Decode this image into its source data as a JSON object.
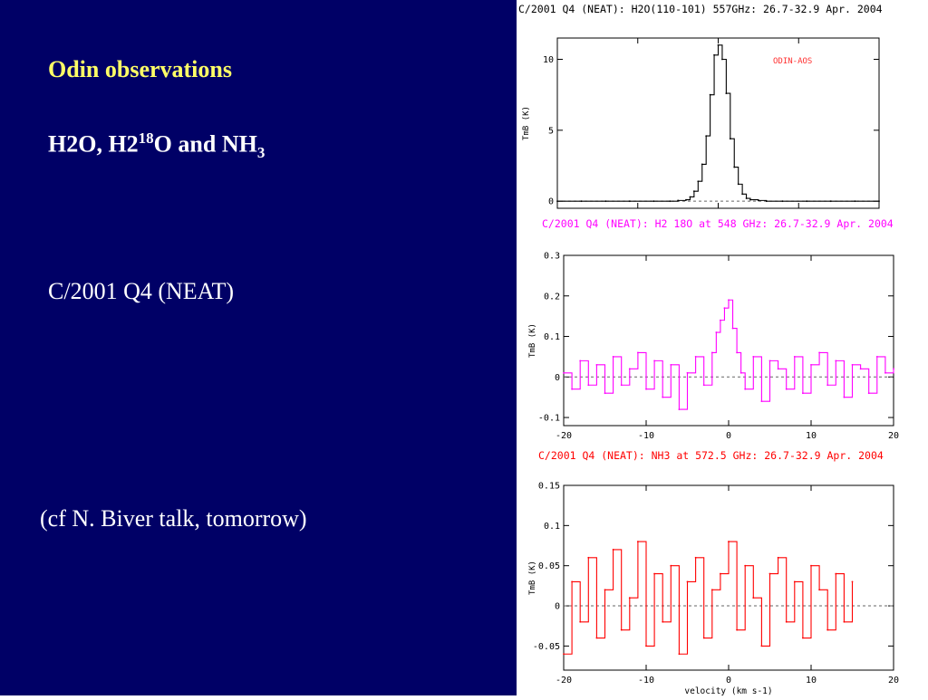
{
  "slide": {
    "heading": "Odin observations",
    "molecules": {
      "h2o": "H2O, H2",
      "sup18": "18",
      "rest_a": "O and NH",
      "sub3": "3"
    },
    "comet": "C/2001 Q4 (NEAT)",
    "note": "(cf N. Biver talk, tomorrow)"
  },
  "chart_data": [
    {
      "type": "line",
      "title": "C/2001 Q4 (NEAT): H2O(110-101) 557GHz: 26.7-32.9 Apr. 2004",
      "annotation": "ODIN-AOS",
      "ylabel": "TmB (K)",
      "xlabel": "",
      "xlim": [
        -20,
        20
      ],
      "ylim": [
        -0.5,
        11.5
      ],
      "yticks": [
        0,
        5,
        10
      ],
      "xticks": [],
      "color": "#000000",
      "baseline": 0,
      "series": [
        {
          "x": [
            -20,
            -17,
            -14,
            -11,
            -8,
            -6,
            -5,
            -4,
            -3.5,
            -3,
            -2.5,
            -2,
            -1.5,
            -1,
            -0.5,
            0,
            0.5,
            1,
            1.5,
            2,
            2.5,
            3,
            3.5,
            4,
            5,
            6,
            8,
            11,
            14,
            17,
            20
          ],
          "values": [
            0,
            0,
            0,
            0,
            0,
            0,
            0.05,
            0.1,
            0.3,
            0.7,
            1.4,
            2.6,
            4.6,
            7.5,
            10.3,
            11.0,
            10.0,
            7.6,
            4.4,
            2.4,
            1.2,
            0.5,
            0.2,
            0.1,
            0.05,
            0,
            0,
            0,
            0,
            0,
            0
          ]
        }
      ]
    },
    {
      "type": "line",
      "title": "C/2001 Q4 (NEAT): H2 18O at 548 GHz: 26.7-32.9 Apr. 2004",
      "ylabel": "TmB (K)",
      "xlabel": "",
      "xlim": [
        -20,
        20
      ],
      "ylim": [
        -0.12,
        0.3
      ],
      "yticks": [
        -0.1,
        0,
        0.1,
        0.2,
        0.3
      ],
      "xticks": [
        -20,
        -10,
        0,
        10,
        20
      ],
      "color": "#ff00ff",
      "baseline": 0,
      "series": [
        {
          "x": [
            -20,
            -19,
            -18,
            -17,
            -16,
            -15,
            -14,
            -13,
            -12,
            -11,
            -10,
            -9,
            -8,
            -7,
            -6,
            -5,
            -4,
            -3,
            -2,
            -1.5,
            -1,
            -0.5,
            0,
            0.5,
            1,
            1.5,
            2,
            3,
            4,
            5,
            6,
            7,
            8,
            9,
            10,
            11,
            12,
            13,
            14,
            15,
            16,
            17,
            18,
            19,
            20
          ],
          "values": [
            0.01,
            -0.03,
            0.04,
            -0.02,
            0.03,
            -0.04,
            0.05,
            -0.02,
            0.02,
            0.06,
            -0.03,
            0.04,
            -0.05,
            0.03,
            -0.08,
            0.01,
            0.05,
            -0.02,
            0.06,
            0.11,
            0.14,
            0.17,
            0.19,
            0.12,
            0.06,
            0.01,
            -0.03,
            0.05,
            -0.06,
            0.04,
            0.02,
            -0.03,
            0.05,
            -0.04,
            0.03,
            0.06,
            -0.02,
            0.04,
            -0.05,
            0.03,
            0.02,
            -0.04,
            0.05,
            0.01,
            0.02
          ]
        }
      ]
    },
    {
      "type": "line",
      "title": "C/2001 Q4 (NEAT): NH3 at 572.5 GHz: 26.7-32.9 Apr. 2004",
      "ylabel": "TmB (K)",
      "xlabel": "velocity (km s-1)",
      "xlim": [
        -20,
        20
      ],
      "ylim": [
        -0.08,
        0.15
      ],
      "yticks": [
        -0.05,
        0,
        0.05,
        0.1,
        0.15
      ],
      "xticks": [
        -20,
        -10,
        0,
        10,
        20
      ],
      "color": "#ff0000",
      "baseline": 0,
      "series": [
        {
          "x": [
            -20,
            -19,
            -18,
            -17,
            -16,
            -15,
            -14,
            -13,
            -12,
            -11,
            -10,
            -9,
            -8,
            -7,
            -6,
            -5,
            -4,
            -3,
            -2,
            -1,
            0,
            1,
            2,
            3,
            4,
            5,
            6,
            7,
            8,
            9,
            10,
            11,
            12,
            13,
            14,
            15
          ],
          "values": [
            -0.06,
            0.03,
            -0.02,
            0.06,
            -0.04,
            0.02,
            0.07,
            -0.03,
            0.01,
            0.08,
            -0.05,
            0.04,
            -0.02,
            0.05,
            -0.06,
            0.03,
            0.06,
            -0.04,
            0.02,
            0.04,
            0.08,
            -0.03,
            0.05,
            0.01,
            -0.05,
            0.04,
            0.06,
            -0.02,
            0.03,
            -0.04,
            0.05,
            0.02,
            -0.03,
            0.04,
            -0.02,
            0.03
          ]
        }
      ]
    }
  ]
}
